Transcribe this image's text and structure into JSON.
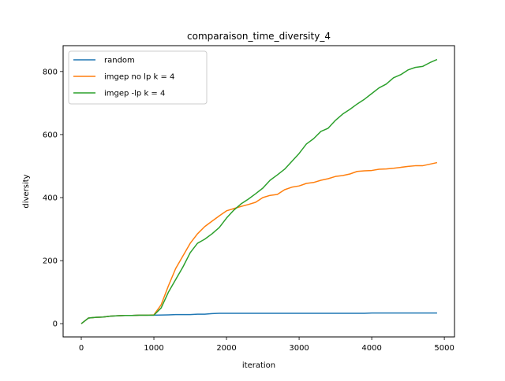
{
  "chart_data": {
    "type": "line",
    "title": "comparaison_time_diversity_4",
    "xlabel": "iteration",
    "ylabel": "diversity",
    "xlim": [
      -250,
      5140
    ],
    "ylim": [
      -42,
      882
    ],
    "xticks": [
      0,
      1000,
      2000,
      3000,
      4000,
      5000
    ],
    "yticks": [
      0,
      200,
      400,
      600,
      800
    ],
    "grid": false,
    "legend_position": "upper-left",
    "series": [
      {
        "name": "random",
        "color": "#1f77b4",
        "points": [
          [
            0,
            0
          ],
          [
            100,
            18
          ],
          [
            200,
            20
          ],
          [
            300,
            21
          ],
          [
            400,
            24
          ],
          [
            500,
            25
          ],
          [
            600,
            26
          ],
          [
            700,
            26
          ],
          [
            800,
            27
          ],
          [
            900,
            27
          ],
          [
            1000,
            27
          ],
          [
            1200,
            28
          ],
          [
            1300,
            29
          ],
          [
            1500,
            29
          ],
          [
            1600,
            30
          ],
          [
            1700,
            30
          ],
          [
            1800,
            32
          ],
          [
            1900,
            33
          ],
          [
            2000,
            33
          ],
          [
            3000,
            33
          ],
          [
            3900,
            33
          ],
          [
            4000,
            34
          ],
          [
            4900,
            34
          ]
        ]
      },
      {
        "name": "imgep no lp k = 4",
        "color": "#ff7f0e",
        "points": [
          [
            0,
            0
          ],
          [
            100,
            18
          ],
          [
            200,
            20
          ],
          [
            300,
            21
          ],
          [
            400,
            24
          ],
          [
            500,
            25
          ],
          [
            600,
            26
          ],
          [
            700,
            26
          ],
          [
            800,
            27
          ],
          [
            900,
            27
          ],
          [
            1000,
            28
          ],
          [
            1100,
            60
          ],
          [
            1200,
            120
          ],
          [
            1300,
            175
          ],
          [
            1400,
            215
          ],
          [
            1500,
            255
          ],
          [
            1600,
            285
          ],
          [
            1700,
            308
          ],
          [
            1800,
            325
          ],
          [
            1900,
            342
          ],
          [
            2000,
            358
          ],
          [
            2100,
            365
          ],
          [
            2200,
            372
          ],
          [
            2300,
            378
          ],
          [
            2400,
            385
          ],
          [
            2500,
            400
          ],
          [
            2600,
            407
          ],
          [
            2700,
            410
          ],
          [
            2800,
            425
          ],
          [
            2900,
            433
          ],
          [
            3000,
            437
          ],
          [
            3100,
            445
          ],
          [
            3200,
            448
          ],
          [
            3300,
            455
          ],
          [
            3400,
            460
          ],
          [
            3500,
            467
          ],
          [
            3600,
            470
          ],
          [
            3700,
            475
          ],
          [
            3800,
            483
          ],
          [
            3900,
            485
          ],
          [
            4000,
            486
          ],
          [
            4100,
            490
          ],
          [
            4200,
            491
          ],
          [
            4300,
            493
          ],
          [
            4400,
            496
          ],
          [
            4500,
            499
          ],
          [
            4600,
            501
          ],
          [
            4700,
            501
          ],
          [
            4800,
            506
          ],
          [
            4900,
            511
          ]
        ]
      },
      {
        "name": "imgep -lp k = 4",
        "color": "#2ca02c",
        "points": [
          [
            0,
            0
          ],
          [
            100,
            18
          ],
          [
            200,
            20
          ],
          [
            300,
            21
          ],
          [
            400,
            24
          ],
          [
            500,
            25
          ],
          [
            600,
            26
          ],
          [
            700,
            26
          ],
          [
            800,
            27
          ],
          [
            900,
            27
          ],
          [
            1000,
            27
          ],
          [
            1100,
            50
          ],
          [
            1200,
            100
          ],
          [
            1300,
            140
          ],
          [
            1400,
            180
          ],
          [
            1500,
            225
          ],
          [
            1600,
            255
          ],
          [
            1700,
            268
          ],
          [
            1800,
            285
          ],
          [
            1900,
            305
          ],
          [
            2000,
            335
          ],
          [
            2100,
            360
          ],
          [
            2200,
            380
          ],
          [
            2300,
            395
          ],
          [
            2400,
            412
          ],
          [
            2500,
            430
          ],
          [
            2600,
            455
          ],
          [
            2700,
            472
          ],
          [
            2800,
            490
          ],
          [
            2900,
            515
          ],
          [
            3000,
            540
          ],
          [
            3100,
            570
          ],
          [
            3200,
            587
          ],
          [
            3300,
            610
          ],
          [
            3400,
            620
          ],
          [
            3500,
            645
          ],
          [
            3600,
            665
          ],
          [
            3700,
            680
          ],
          [
            3800,
            697
          ],
          [
            3900,
            712
          ],
          [
            4000,
            730
          ],
          [
            4100,
            748
          ],
          [
            4200,
            760
          ],
          [
            4300,
            780
          ],
          [
            4400,
            790
          ],
          [
            4500,
            805
          ],
          [
            4600,
            813
          ],
          [
            4700,
            816
          ],
          [
            4800,
            828
          ],
          [
            4900,
            838
          ]
        ]
      }
    ]
  }
}
